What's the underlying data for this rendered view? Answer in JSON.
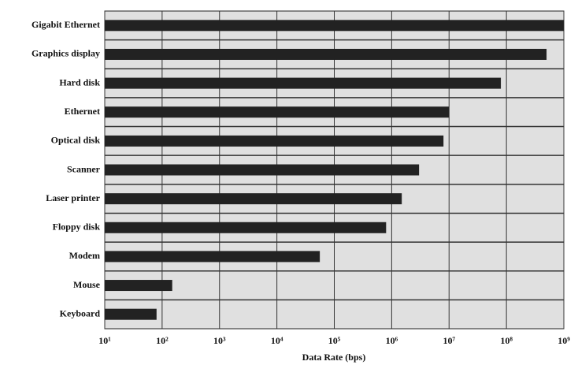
{
  "chart_data": {
    "type": "hbar",
    "x_label": "Data Rate (bps)",
    "categories": [
      "Gigabit Ethernet",
      "Graphics display",
      "Hard disk",
      "Ethernet",
      "Optical disk",
      "Scanner",
      "Laser printer",
      "Floppy disk",
      "Modem",
      "Mouse",
      "Keyboard"
    ],
    "values": [
      1000000000,
      500000000,
      80000000,
      10000000,
      8000000,
      3000000,
      1500000,
      800000,
      56000,
      150,
      80
    ],
    "color": "#222222",
    "xscale": "log",
    "xlim": [
      10,
      1000000000
    ],
    "xticks": [
      {
        "value": 10,
        "label": "10¹"
      },
      {
        "value": 100,
        "label": "10²"
      },
      {
        "value": 1000,
        "label": "10³"
      },
      {
        "value": 10000,
        "label": "10⁴"
      },
      {
        "value": 100000,
        "label": "10⁵"
      },
      {
        "value": 1000000,
        "label": "10⁶"
      },
      {
        "value": 10000000,
        "label": "10⁷"
      },
      {
        "value": 100000000,
        "label": "10⁸"
      },
      {
        "value": 1000000000,
        "label": "10⁹"
      }
    ],
    "grid": true
  }
}
